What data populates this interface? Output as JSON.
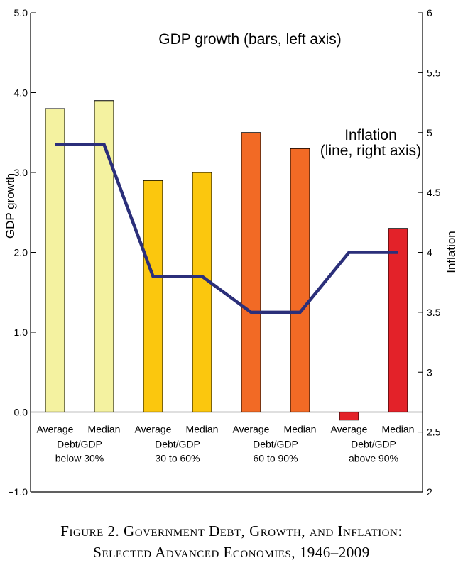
{
  "chart_data": {
    "type": "bar",
    "categories": [
      "Average",
      "Median",
      "Average",
      "Median",
      "Average",
      "Median",
      "Average",
      "Median"
    ],
    "groups": [
      {
        "line1": "Debt/GDP",
        "line2": "below 30%"
      },
      {
        "line1": "Debt/GDP",
        "line2": "30 to 60%"
      },
      {
        "line1": "Debt/GDP",
        "line2": "60 to 90%"
      },
      {
        "line1": "Debt/GDP",
        "line2": "above 90%"
      }
    ],
    "series": [
      {
        "name": "GDP growth",
        "axis": "left",
        "type": "bar",
        "values": [
          3.8,
          3.9,
          2.9,
          3.0,
          3.5,
          3.3,
          -0.1,
          2.3
        ]
      },
      {
        "name": "Inflation",
        "axis": "right",
        "type": "line",
        "values": [
          4.9,
          4.9,
          3.8,
          3.8,
          3.5,
          3.5,
          4.0,
          4.0
        ]
      }
    ],
    "bar_colors": [
      "#f4f2a0",
      "#f4f2a0",
      "#fbc70e",
      "#fbc70e",
      "#f26a25",
      "#f26a25",
      "#e32229",
      "#e32229"
    ],
    "line_color": "#2b2f7a",
    "left_axis": {
      "label": "GDP growth",
      "ylim": [
        -1.0,
        5.0
      ],
      "ticks": [
        "5.0",
        "4.0",
        "3.0",
        "2.0",
        "1.0",
        "0.0",
        "−1.0"
      ]
    },
    "right_axis": {
      "label": "Inflation",
      "ylim": [
        2,
        6
      ],
      "ticks": [
        "6",
        "5.5",
        "5",
        "4.5",
        "4",
        "3.5",
        "3",
        "2.5",
        "2"
      ]
    },
    "annotations": {
      "gdp": "GDP growth (bars, left axis)",
      "inflation_line1": "Inflation",
      "inflation_line2": "(line, right axis)"
    }
  },
  "caption": {
    "line1": "Figure 2. Government Debt, Growth, and Inflation:",
    "line2": "Selected Advanced Economies, 1946–2009"
  }
}
